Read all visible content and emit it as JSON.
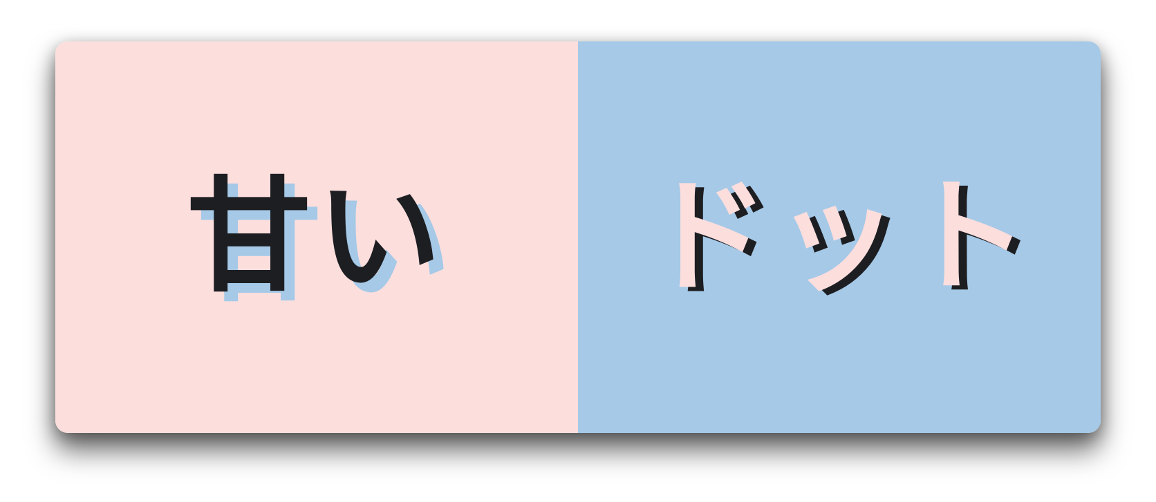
{
  "colors": {
    "pink": "#fcdedd",
    "blue": "#a5c9e7",
    "ink": "#1d1e22"
  },
  "left_panel": {
    "text": "甘い"
  },
  "right_panel": {
    "text": "ドット"
  }
}
